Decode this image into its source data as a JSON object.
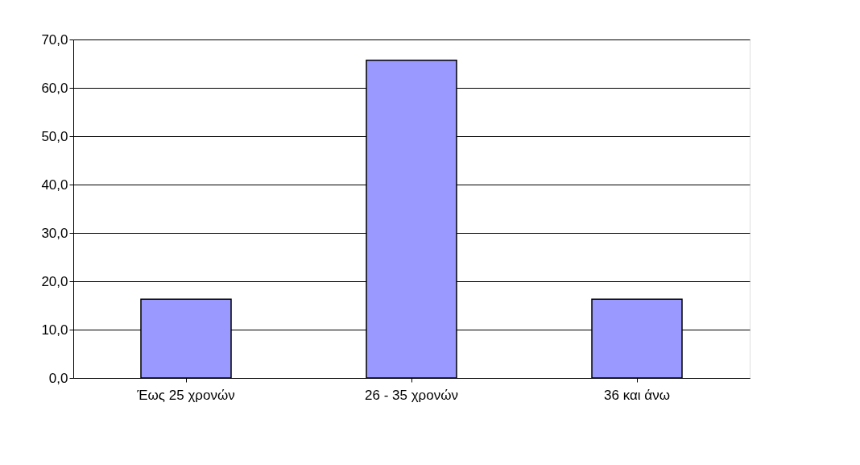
{
  "chart_data": {
    "type": "bar",
    "categories": [
      "Έως 25 χρονών",
      "26 - 35 χρονών",
      "36 και άνω"
    ],
    "values": [
      16.3,
      65.7,
      16.3
    ],
    "color": "#9999ff",
    "ylim": [
      0,
      70
    ],
    "yticks": [
      {
        "value": 0,
        "label": "0,0"
      },
      {
        "value": 10,
        "label": "10,0"
      },
      {
        "value": 20,
        "label": "20,0"
      },
      {
        "value": 30,
        "label": "30,0"
      },
      {
        "value": 40,
        "label": "40,0"
      },
      {
        "value": 50,
        "label": "50,0"
      },
      {
        "value": 60,
        "label": "60,0"
      },
      {
        "value": 70,
        "label": "70,0"
      }
    ],
    "grid": "y"
  }
}
